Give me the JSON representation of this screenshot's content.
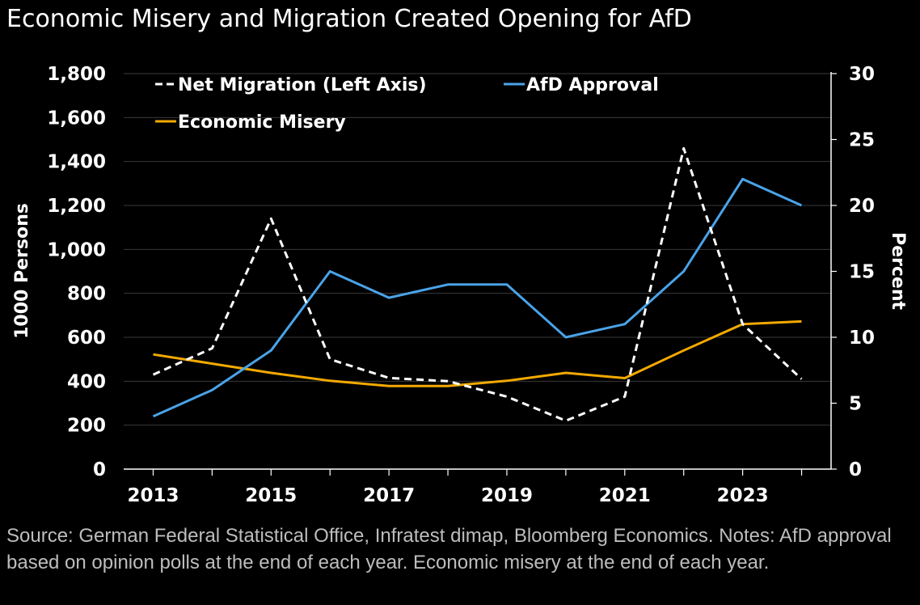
{
  "title": "Economic Misery and Migration Created Opening for AfD",
  "footnote": "Source: German Federal Statistical Office, Infratest dimap, Bloomberg Economics. Notes: AfD approval based on opinion polls at the end of each year. Economic misery at the end of each year.",
  "colors": {
    "background": "#000000",
    "net_migration": "#ffffff",
    "afd_approval": "#4aa3e8",
    "economic_misery": "#f2a900",
    "gridline": "#3a3a3a",
    "footnote": "#bdbdbd"
  },
  "chart_data": {
    "type": "line",
    "x": [
      2013,
      2014,
      2015,
      2016,
      2017,
      2018,
      2019,
      2020,
      2021,
      2022,
      2023,
      2024
    ],
    "x_tick_labels": [
      "2013",
      "2015",
      "2017",
      "2019",
      "2021",
      "2023"
    ],
    "ylabel": "1000 Persons",
    "y2label": "Percent",
    "ylim": [
      0,
      1800
    ],
    "y2lim": [
      0,
      30
    ],
    "y_tick_labels": [
      "0",
      "200",
      "400",
      "600",
      "800",
      "1,000",
      "1,200",
      "1,400",
      "1,600",
      "1,800"
    ],
    "y2_tick_labels": [
      "0",
      "5",
      "10",
      "15",
      "20",
      "25",
      "30"
    ],
    "grid": true,
    "legend_position": "top-left",
    "series": [
      {
        "name": "Net Migration (Left Axis)",
        "axis": "left",
        "style": "dashed",
        "values": [
          430,
          550,
          1140,
          500,
          415,
          400,
          330,
          220,
          330,
          1460,
          660,
          410
        ]
      },
      {
        "name": "AfD Approval",
        "axis": "right",
        "style": "solid",
        "values": [
          4,
          6,
          9,
          15,
          13,
          14,
          14,
          10,
          11,
          15,
          22,
          20
        ]
      },
      {
        "name": "Economic Misery",
        "axis": "right",
        "style": "solid",
        "values": [
          8.7,
          8.0,
          7.3,
          6.7,
          6.3,
          6.3,
          6.7,
          7.3,
          6.9,
          9.0,
          11.0,
          11.2
        ]
      }
    ]
  }
}
